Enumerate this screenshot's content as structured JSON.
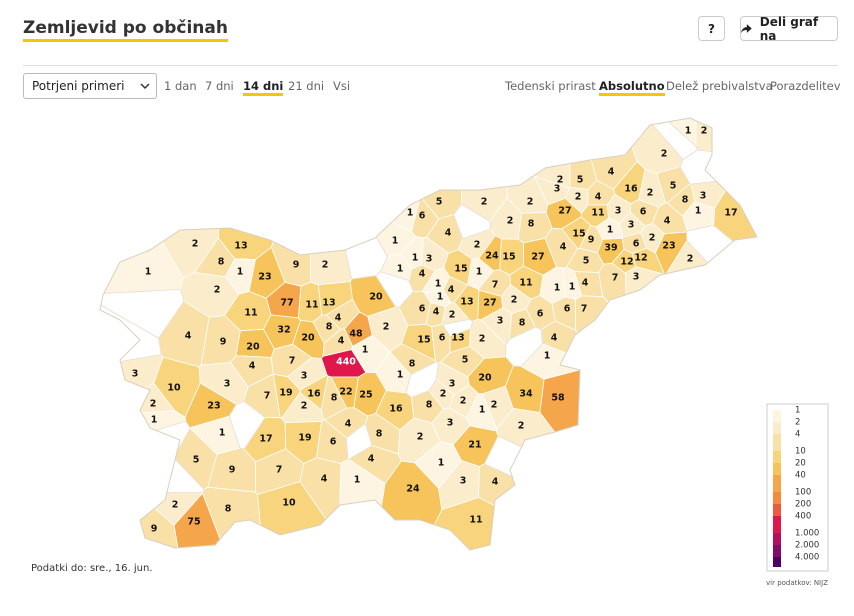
{
  "header": {
    "title": "Zemljevid po občinah",
    "help": "?",
    "share": "Deli graf na"
  },
  "controls": {
    "select": "Potrjeni primeri",
    "periods": [
      "1 dan",
      "7 dni",
      "14 dni",
      "21 dni",
      "Vsi"
    ],
    "views": [
      "Tedenski prirast",
      "Absolutno",
      "Delež prebivalstva",
      "Porazdelitev"
    ]
  },
  "chart_data": {
    "type": "map",
    "values": [
      1,
      2,
      2,
      4,
      2,
      5,
      3,
      16,
      5,
      2,
      2,
      4,
      5,
      2,
      2,
      27,
      11,
      3,
      6,
      8,
      3,
      1,
      17,
      1,
      6,
      3,
      4,
      2,
      8,
      4,
      15,
      9,
      1,
      6,
      2,
      23,
      2,
      39,
      12,
      12,
      7,
      3,
      4,
      27,
      5,
      1,
      2,
      24,
      15,
      1,
      1,
      3,
      15,
      1,
      4,
      7,
      11,
      1,
      1,
      4,
      20,
      1,
      1,
      4,
      13,
      27,
      2,
      6,
      4,
      2,
      3,
      8,
      6,
      6,
      7,
      9,
      2,
      13,
      2,
      8,
      1,
      23,
      1,
      2,
      77,
      11,
      13,
      4,
      11,
      32,
      20,
      8,
      2,
      48,
      4,
      4,
      9,
      20,
      15,
      6,
      13,
      2,
      4,
      440,
      1,
      7,
      4,
      1,
      8,
      5,
      1,
      3,
      10,
      3,
      3,
      20,
      3,
      34,
      58,
      19,
      16,
      22,
      25,
      8,
      7,
      2,
      2,
      8,
      2,
      1,
      2,
      16,
      2,
      23,
      1,
      3,
      4,
      8,
      2,
      1,
      17,
      19,
      6,
      2,
      21,
      5,
      9,
      7,
      4,
      1,
      4,
      1,
      24,
      3,
      4,
      10,
      8,
      2,
      75,
      11,
      9
    ],
    "colorscale": {
      "ticks": [
        1,
        2,
        4,
        10,
        20,
        40,
        100,
        200,
        400,
        {
          "value": 1000,
          "label": "1.000"
        },
        {
          "value": 2000,
          "label": "2.000"
        },
        {
          "value": 4000,
          "label": "4.000"
        }
      ],
      "colors": [
        "#fdf5e2",
        "#fbeccb",
        "#f9e0a6",
        "#f8d47d",
        "#f6c45a",
        "#f6a64a",
        "#f48a3e",
        "#ec5a40",
        "#e0174b",
        "#b3105f",
        "#820b68",
        "#4d0062"
      ]
    },
    "footnote": "Podatki do: sre., 16. jun.",
    "source": "vir podatkov: NIJZ"
  }
}
